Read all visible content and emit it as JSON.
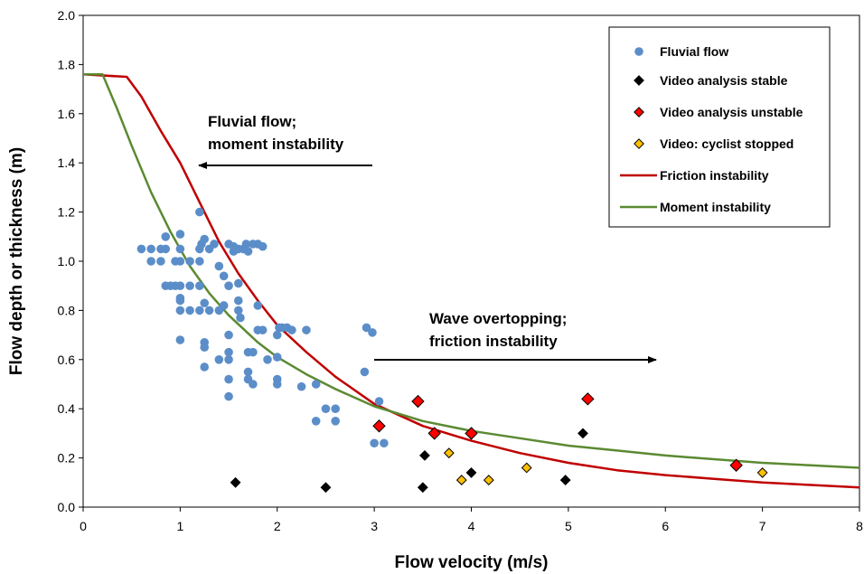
{
  "chart_data": {
    "type": "scatter",
    "xlabel": "Flow velocity (m/s)",
    "ylabel": "Flow depth or thickness (m)",
    "xlim": [
      0,
      8
    ],
    "ylim": [
      0,
      2.0
    ],
    "x_ticks": [
      "0",
      "1",
      "2",
      "3",
      "4",
      "5",
      "6",
      "7",
      "8"
    ],
    "y_ticks": [
      "0.0",
      "0.2",
      "0.4",
      "0.6",
      "0.8",
      "1.0",
      "1.2",
      "1.4",
      "1.6",
      "1.8",
      "2.0"
    ],
    "grid": false,
    "legend_position": "top-right",
    "annotations": [
      {
        "lines": [
          "Fluvial flow;",
          "moment instability"
        ],
        "arrow": "left"
      },
      {
        "lines": [
          "Wave overtopping;",
          "friction instability"
        ],
        "arrow": "right"
      }
    ],
    "series": [
      {
        "name": "Fluvial flow",
        "kind": "scatter",
        "marker": "circle",
        "color": "#5b8ec9",
        "points": [
          [
            0.6,
            1.05
          ],
          [
            0.7,
            1.0
          ],
          [
            0.7,
            1.05
          ],
          [
            0.8,
            1.0
          ],
          [
            0.8,
            1.05
          ],
          [
            0.85,
            1.1
          ],
          [
            0.85,
            1.05
          ],
          [
            0.85,
            0.9
          ],
          [
            0.9,
            0.9
          ],
          [
            0.95,
            0.9
          ],
          [
            1.0,
            0.9
          ],
          [
            0.95,
            1.0
          ],
          [
            1.0,
            1.11
          ],
          [
            1.0,
            1.05
          ],
          [
            1.0,
            1.0
          ],
          [
            1.0,
            0.85
          ],
          [
            1.0,
            0.84
          ],
          [
            1.0,
            0.8
          ],
          [
            1.0,
            0.68
          ],
          [
            1.1,
            1.0
          ],
          [
            1.1,
            0.8
          ],
          [
            1.1,
            0.9
          ],
          [
            1.2,
            1.2
          ],
          [
            1.2,
            1.05
          ],
          [
            1.2,
            1.0
          ],
          [
            1.2,
            0.9
          ],
          [
            1.2,
            0.8
          ],
          [
            1.22,
            1.07
          ],
          [
            1.25,
            1.09
          ],
          [
            1.25,
            0.83
          ],
          [
            1.25,
            0.67
          ],
          [
            1.25,
            0.65
          ],
          [
            1.25,
            0.57
          ],
          [
            1.3,
            1.05
          ],
          [
            1.3,
            0.8
          ],
          [
            1.35,
            1.07
          ],
          [
            1.4,
            0.98
          ],
          [
            1.4,
            0.8
          ],
          [
            1.4,
            0.6
          ],
          [
            1.45,
            0.94
          ],
          [
            1.45,
            0.82
          ],
          [
            1.5,
            0.9
          ],
          [
            1.5,
            0.7
          ],
          [
            1.5,
            0.63
          ],
          [
            1.5,
            0.6
          ],
          [
            1.5,
            0.52
          ],
          [
            1.5,
            0.45
          ],
          [
            1.5,
            1.07
          ],
          [
            1.55,
            1.04
          ],
          [
            1.55,
            1.06
          ],
          [
            1.6,
            1.05
          ],
          [
            1.6,
            0.91
          ],
          [
            1.6,
            0.84
          ],
          [
            1.6,
            0.8
          ],
          [
            1.62,
            0.77
          ],
          [
            1.65,
            1.05
          ],
          [
            1.68,
            1.07
          ],
          [
            1.7,
            1.04
          ],
          [
            1.7,
            0.63
          ],
          [
            1.7,
            0.55
          ],
          [
            1.7,
            0.52
          ],
          [
            1.75,
            1.07
          ],
          [
            1.75,
            0.63
          ],
          [
            1.75,
            0.5
          ],
          [
            1.8,
            1.07
          ],
          [
            1.8,
            0.82
          ],
          [
            1.8,
            0.72
          ],
          [
            1.85,
            1.06
          ],
          [
            1.85,
            0.72
          ],
          [
            1.9,
            0.6
          ],
          [
            2.0,
            0.7
          ],
          [
            2.0,
            0.61
          ],
          [
            2.0,
            0.52
          ],
          [
            2.0,
            0.5
          ],
          [
            2.02,
            0.73
          ],
          [
            2.05,
            0.73
          ],
          [
            2.1,
            0.73
          ],
          [
            2.15,
            0.72
          ],
          [
            2.25,
            0.49
          ],
          [
            2.3,
            0.72
          ],
          [
            2.4,
            0.5
          ],
          [
            2.4,
            0.35
          ],
          [
            2.5,
            0.4
          ],
          [
            2.6,
            0.4
          ],
          [
            2.6,
            0.35
          ],
          [
            2.9,
            0.55
          ],
          [
            2.92,
            0.73
          ],
          [
            2.98,
            0.71
          ],
          [
            3.0,
            0.26
          ],
          [
            3.05,
            0.43
          ],
          [
            3.1,
            0.26
          ]
        ]
      },
      {
        "name": "Video analysis stable",
        "kind": "scatter",
        "marker": "diamond",
        "color": "#000000",
        "points": [
          [
            1.57,
            0.1
          ],
          [
            2.5,
            0.08
          ],
          [
            3.5,
            0.08
          ],
          [
            3.52,
            0.21
          ],
          [
            4.0,
            0.14
          ],
          [
            4.97,
            0.11
          ],
          [
            5.15,
            0.3
          ]
        ]
      },
      {
        "name": "Video analysis unstable",
        "kind": "scatter",
        "marker": "diamond",
        "color": "#ff0000",
        "points": [
          [
            3.05,
            0.33
          ],
          [
            3.45,
            0.43
          ],
          [
            3.62,
            0.3
          ],
          [
            4.0,
            0.3
          ],
          [
            5.2,
            0.44
          ],
          [
            6.73,
            0.17
          ]
        ]
      },
      {
        "name": "Video: cyclist stopped",
        "kind": "scatter",
        "marker": "diamond",
        "color": "#ffc000",
        "points": [
          [
            3.77,
            0.22
          ],
          [
            3.9,
            0.11
          ],
          [
            4.18,
            0.11
          ],
          [
            4.57,
            0.16
          ],
          [
            7.0,
            0.14
          ]
        ]
      },
      {
        "name": "Friction instability",
        "kind": "line",
        "color": "#c00000",
        "points": [
          [
            0,
            1.76
          ],
          [
            0.45,
            1.75
          ],
          [
            0.6,
            1.67
          ],
          [
            0.8,
            1.53
          ],
          [
            1.0,
            1.4
          ],
          [
            1.2,
            1.24
          ],
          [
            1.4,
            1.08
          ],
          [
            1.6,
            0.95
          ],
          [
            1.8,
            0.84
          ],
          [
            2.0,
            0.74
          ],
          [
            2.3,
            0.63
          ],
          [
            2.6,
            0.53
          ],
          [
            3.0,
            0.42
          ],
          [
            3.5,
            0.33
          ],
          [
            4.0,
            0.27
          ],
          [
            4.5,
            0.22
          ],
          [
            5.0,
            0.18
          ],
          [
            5.5,
            0.15
          ],
          [
            6.0,
            0.13
          ],
          [
            6.5,
            0.115
          ],
          [
            7.0,
            0.1
          ],
          [
            7.5,
            0.09
          ],
          [
            8.0,
            0.08
          ]
        ]
      },
      {
        "name": "Moment instability",
        "kind": "line",
        "color": "#5b8a32",
        "points": [
          [
            0,
            1.76
          ],
          [
            0.2,
            1.76
          ],
          [
            0.35,
            1.62
          ],
          [
            0.5,
            1.47
          ],
          [
            0.7,
            1.28
          ],
          [
            0.9,
            1.12
          ],
          [
            1.1,
            0.98
          ],
          [
            1.3,
            0.87
          ],
          [
            1.5,
            0.78
          ],
          [
            1.8,
            0.67
          ],
          [
            2.0,
            0.61
          ],
          [
            2.3,
            0.54
          ],
          [
            2.6,
            0.48
          ],
          [
            3.0,
            0.41
          ],
          [
            3.5,
            0.35
          ],
          [
            4.0,
            0.31
          ],
          [
            4.5,
            0.28
          ],
          [
            5.0,
            0.25
          ],
          [
            5.5,
            0.23
          ],
          [
            6.0,
            0.21
          ],
          [
            6.5,
            0.195
          ],
          [
            7.0,
            0.18
          ],
          [
            7.5,
            0.17
          ],
          [
            8.0,
            0.16
          ]
        ]
      }
    ]
  }
}
